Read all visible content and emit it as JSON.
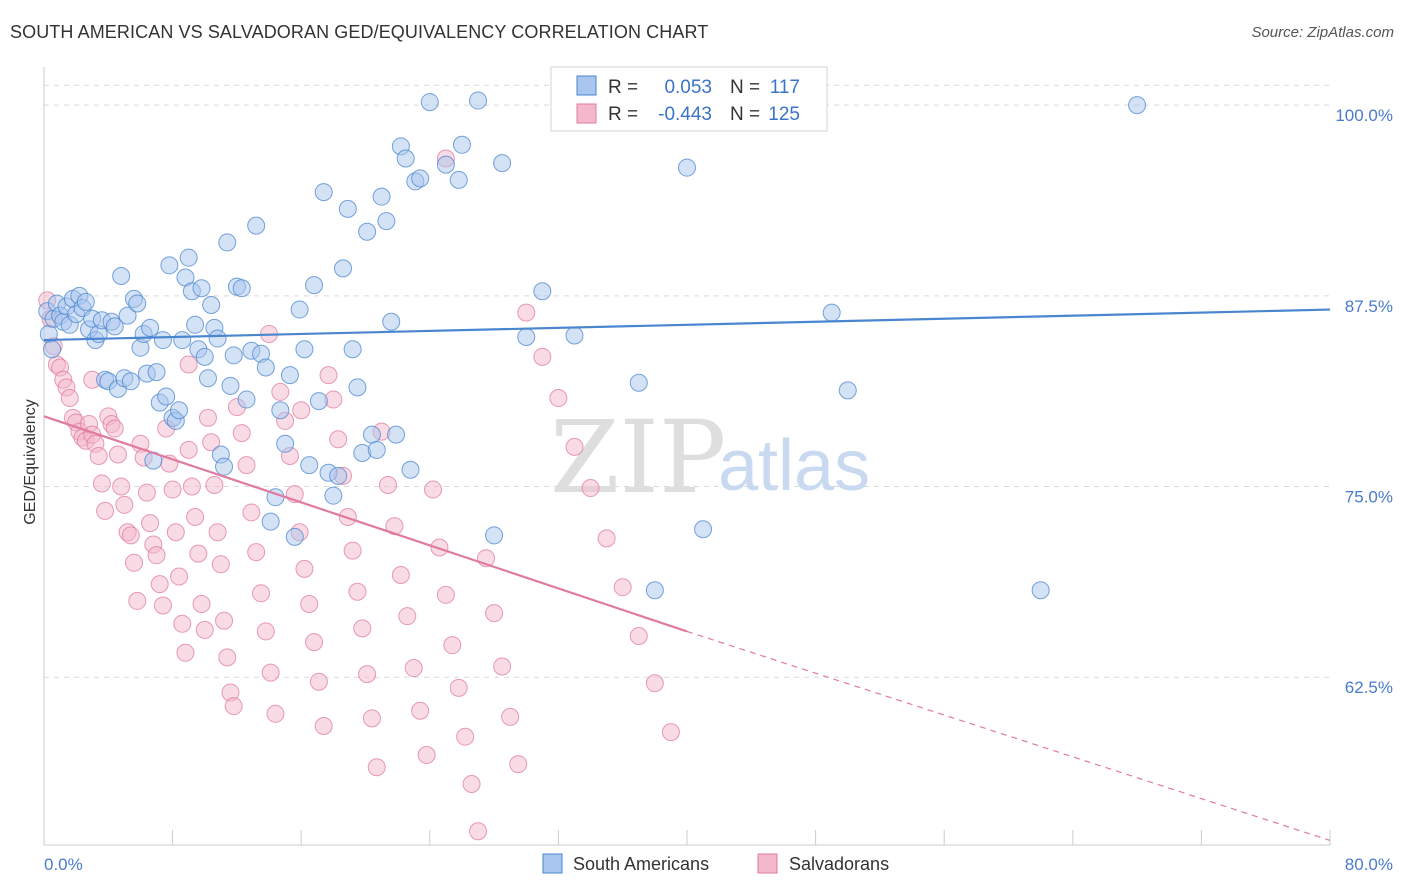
{
  "title": "SOUTH AMERICAN VS SALVADORAN GED/EQUIVALENCY CORRELATION CHART",
  "source": "Source: ZipAtlas.com",
  "watermark": {
    "zip": "ZIP",
    "atlas": "atlas"
  },
  "legend": {
    "r_label": "R =",
    "n_label": "N =",
    "series": [
      {
        "r": "0.053",
        "n": "117"
      },
      {
        "r": "-0.443",
        "n": "125"
      }
    ]
  },
  "colors": {
    "blue": "#4a86cf",
    "pink": "#e07ba0",
    "blue_fill": "#a9c6ee",
    "pink_fill": "#f4b8cc",
    "grid": "#d9d9d9",
    "axis_text": "#4a7cc9"
  },
  "chart_data": {
    "type": "scatter",
    "title": "SOUTH AMERICAN VS SALVADORAN GED/EQUIVALENCY CORRELATION CHART",
    "xlabel": "",
    "ylabel": "GED/Equivalency",
    "xlim": [
      0,
      80
    ],
    "ylim": [
      51.5,
      102.5
    ],
    "x_tick_labels": [
      "0.0%",
      "80.0%"
    ],
    "y_ticks": [
      62.5,
      75.0,
      87.5,
      100.0
    ],
    "y_tick_labels": [
      "62.5%",
      "75.0%",
      "87.5%",
      "100.0%"
    ],
    "grid": true,
    "legend_position": "top-center",
    "series": [
      {
        "name": "South Americans",
        "color": "#4a86cf",
        "trend": {
          "x": [
            0,
            80
          ],
          "y": [
            84.6,
            86.6
          ]
        },
        "points": [
          [
            0.2,
            86.5
          ],
          [
            0.3,
            85.0
          ],
          [
            0.5,
            84.0
          ],
          [
            0.6,
            86.0
          ],
          [
            0.8,
            87.0
          ],
          [
            1.0,
            86.2
          ],
          [
            1.2,
            85.8
          ],
          [
            1.4,
            86.8
          ],
          [
            1.6,
            85.6
          ],
          [
            1.8,
            87.3
          ],
          [
            2.0,
            86.3
          ],
          [
            2.2,
            87.5
          ],
          [
            2.4,
            86.7
          ],
          [
            2.6,
            87.1
          ],
          [
            2.8,
            85.3
          ],
          [
            3.0,
            86.0
          ],
          [
            3.2,
            84.6
          ],
          [
            3.4,
            85.0
          ],
          [
            3.6,
            85.9
          ],
          [
            3.8,
            82.0
          ],
          [
            4.0,
            81.9
          ],
          [
            4.2,
            85.8
          ],
          [
            4.4,
            85.5
          ],
          [
            4.6,
            81.4
          ],
          [
            4.8,
            88.8
          ],
          [
            5.0,
            82.1
          ],
          [
            5.2,
            86.2
          ],
          [
            5.4,
            81.9
          ],
          [
            5.6,
            87.3
          ],
          [
            5.8,
            87.0
          ],
          [
            6.0,
            84.1
          ],
          [
            6.2,
            85.0
          ],
          [
            6.4,
            82.4
          ],
          [
            6.6,
            85.4
          ],
          [
            6.8,
            76.7
          ],
          [
            7.0,
            82.5
          ],
          [
            7.2,
            80.5
          ],
          [
            7.4,
            84.6
          ],
          [
            7.6,
            80.9
          ],
          [
            7.8,
            89.5
          ],
          [
            8.0,
            79.5
          ],
          [
            8.2,
            79.3
          ],
          [
            8.4,
            80.0
          ],
          [
            8.6,
            84.6
          ],
          [
            8.8,
            88.7
          ],
          [
            9.0,
            90.0
          ],
          [
            9.2,
            87.8
          ],
          [
            9.4,
            85.6
          ],
          [
            9.6,
            84.0
          ],
          [
            9.8,
            88.0
          ],
          [
            10.0,
            83.5
          ],
          [
            10.2,
            82.1
          ],
          [
            10.4,
            86.9
          ],
          [
            10.6,
            85.4
          ],
          [
            10.8,
            84.7
          ],
          [
            11.0,
            77.1
          ],
          [
            11.2,
            76.3
          ],
          [
            11.4,
            91.0
          ],
          [
            11.6,
            81.6
          ],
          [
            11.8,
            83.6
          ],
          [
            12.0,
            88.1
          ],
          [
            12.3,
            88.0
          ],
          [
            12.6,
            80.7
          ],
          [
            12.9,
            83.9
          ],
          [
            13.2,
            92.1
          ],
          [
            13.5,
            83.7
          ],
          [
            13.8,
            82.8
          ],
          [
            14.1,
            72.7
          ],
          [
            14.4,
            74.3
          ],
          [
            14.7,
            80.0
          ],
          [
            15.0,
            77.8
          ],
          [
            15.3,
            82.3
          ],
          [
            15.6,
            71.7
          ],
          [
            15.9,
            86.6
          ],
          [
            16.2,
            84.0
          ],
          [
            16.5,
            76.4
          ],
          [
            16.8,
            88.2
          ],
          [
            17.1,
            80.6
          ],
          [
            17.4,
            94.3
          ],
          [
            17.7,
            75.9
          ],
          [
            18.0,
            74.4
          ],
          [
            18.3,
            75.7
          ],
          [
            18.6,
            89.3
          ],
          [
            18.9,
            93.2
          ],
          [
            19.2,
            84.0
          ],
          [
            19.5,
            81.5
          ],
          [
            19.8,
            77.2
          ],
          [
            20.1,
            91.7
          ],
          [
            20.4,
            78.4
          ],
          [
            20.7,
            77.4
          ],
          [
            21.0,
            94.0
          ],
          [
            21.3,
            92.4
          ],
          [
            21.6,
            85.8
          ],
          [
            21.9,
            78.4
          ],
          [
            22.2,
            97.3
          ],
          [
            22.5,
            96.5
          ],
          [
            22.8,
            76.1
          ],
          [
            23.1,
            95.0
          ],
          [
            23.4,
            95.2
          ],
          [
            24.0,
            100.2
          ],
          [
            25.0,
            96.1
          ],
          [
            25.8,
            95.1
          ],
          [
            26.0,
            97.4
          ],
          [
            27.0,
            100.3
          ],
          [
            28.0,
            71.8
          ],
          [
            28.5,
            96.2
          ],
          [
            30.0,
            84.8
          ],
          [
            31.0,
            87.8
          ],
          [
            33.0,
            84.9
          ],
          [
            37.0,
            81.8
          ],
          [
            38.0,
            68.2
          ],
          [
            41.0,
            72.2
          ],
          [
            49.0,
            86.4
          ],
          [
            50.0,
            81.3
          ],
          [
            62.0,
            68.2
          ],
          [
            68.0,
            100.0
          ],
          [
            40.0,
            95.9
          ]
        ]
      },
      {
        "name": "Salvadorans",
        "color": "#e07ba0",
        "trend": {
          "x": [
            0,
            40
          ],
          "y": [
            79.6,
            65.5
          ]
        },
        "trend_dashed": {
          "x": [
            40,
            80
          ],
          "y": [
            65.5,
            51.8
          ]
        },
        "points": [
          [
            0.2,
            87.2
          ],
          [
            0.4,
            86.0
          ],
          [
            0.6,
            84.2
          ],
          [
            0.8,
            83.0
          ],
          [
            1.0,
            82.8
          ],
          [
            1.2,
            82.0
          ],
          [
            1.4,
            81.5
          ],
          [
            1.6,
            80.8
          ],
          [
            1.8,
            79.5
          ],
          [
            2.0,
            79.2
          ],
          [
            2.2,
            78.6
          ],
          [
            2.4,
            78.2
          ],
          [
            2.6,
            78.0
          ],
          [
            2.8,
            79.1
          ],
          [
            3.0,
            78.4
          ],
          [
            3.2,
            77.8
          ],
          [
            3.4,
            77.0
          ],
          [
            3.6,
            75.2
          ],
          [
            3.8,
            73.4
          ],
          [
            4.0,
            79.6
          ],
          [
            4.2,
            79.1
          ],
          [
            4.4,
            78.8
          ],
          [
            4.6,
            77.1
          ],
          [
            4.8,
            75.0
          ],
          [
            5.0,
            73.8
          ],
          [
            5.2,
            72.0
          ],
          [
            5.4,
            71.8
          ],
          [
            5.6,
            70.0
          ],
          [
            5.8,
            67.5
          ],
          [
            6.0,
            77.8
          ],
          [
            6.2,
            76.9
          ],
          [
            6.4,
            74.6
          ],
          [
            6.6,
            72.6
          ],
          [
            6.8,
            71.2
          ],
          [
            7.0,
            70.5
          ],
          [
            7.2,
            68.6
          ],
          [
            7.4,
            67.2
          ],
          [
            7.6,
            78.8
          ],
          [
            7.8,
            76.5
          ],
          [
            8.0,
            74.8
          ],
          [
            8.2,
            72.0
          ],
          [
            8.4,
            69.1
          ],
          [
            8.6,
            66.0
          ],
          [
            8.8,
            64.1
          ],
          [
            9.0,
            77.4
          ],
          [
            9.2,
            75.0
          ],
          [
            9.4,
            73.0
          ],
          [
            9.6,
            70.6
          ],
          [
            9.8,
            67.3
          ],
          [
            10.0,
            65.6
          ],
          [
            10.2,
            79.5
          ],
          [
            10.4,
            77.9
          ],
          [
            10.6,
            75.1
          ],
          [
            10.8,
            72.0
          ],
          [
            11.0,
            69.9
          ],
          [
            11.2,
            66.2
          ],
          [
            11.4,
            63.8
          ],
          [
            11.6,
            61.5
          ],
          [
            11.8,
            60.6
          ],
          [
            12.0,
            80.2
          ],
          [
            12.3,
            78.5
          ],
          [
            12.6,
            76.4
          ],
          [
            12.9,
            73.3
          ],
          [
            13.2,
            70.7
          ],
          [
            13.5,
            68.0
          ],
          [
            13.8,
            65.5
          ],
          [
            14.1,
            62.8
          ],
          [
            14.4,
            60.1
          ],
          [
            14.7,
            81.2
          ],
          [
            15.0,
            79.3
          ],
          [
            15.3,
            77.0
          ],
          [
            15.6,
            74.5
          ],
          [
            15.9,
            72.0
          ],
          [
            16.2,
            69.6
          ],
          [
            16.5,
            67.3
          ],
          [
            16.8,
            64.8
          ],
          [
            17.1,
            62.2
          ],
          [
            17.4,
            59.3
          ],
          [
            17.7,
            82.3
          ],
          [
            18.0,
            80.7
          ],
          [
            18.3,
            78.1
          ],
          [
            18.6,
            75.7
          ],
          [
            18.9,
            73.0
          ],
          [
            19.2,
            70.8
          ],
          [
            19.5,
            68.1
          ],
          [
            19.8,
            65.7
          ],
          [
            20.1,
            62.7
          ],
          [
            20.4,
            59.8
          ],
          [
            20.7,
            56.6
          ],
          [
            21.0,
            78.6
          ],
          [
            21.4,
            75.1
          ],
          [
            21.8,
            72.4
          ],
          [
            22.2,
            69.2
          ],
          [
            22.6,
            66.5
          ],
          [
            23.0,
            63.1
          ],
          [
            23.4,
            60.3
          ],
          [
            23.8,
            57.4
          ],
          [
            24.2,
            74.8
          ],
          [
            24.6,
            71.0
          ],
          [
            25.0,
            67.9
          ],
          [
            25.4,
            64.6
          ],
          [
            25.8,
            61.8
          ],
          [
            26.2,
            58.6
          ],
          [
            26.6,
            55.5
          ],
          [
            27.0,
            52.4
          ],
          [
            27.5,
            70.3
          ],
          [
            28.0,
            66.7
          ],
          [
            28.5,
            63.2
          ],
          [
            29.0,
            59.9
          ],
          [
            29.5,
            56.8
          ],
          [
            30.0,
            86.4
          ],
          [
            31.0,
            83.5
          ],
          [
            32.0,
            80.8
          ],
          [
            33.0,
            77.6
          ],
          [
            34.0,
            74.9
          ],
          [
            35.0,
            71.6
          ],
          [
            36.0,
            68.4
          ],
          [
            37.0,
            65.2
          ],
          [
            38.0,
            62.1
          ],
          [
            39.0,
            58.9
          ],
          [
            25.0,
            96.5
          ],
          [
            14.0,
            85.0
          ],
          [
            9.0,
            83.0
          ],
          [
            3.0,
            82.0
          ],
          [
            16.0,
            80.0
          ]
        ]
      }
    ]
  },
  "bottom_legend": [
    "South Americans",
    "Salvadorans"
  ]
}
